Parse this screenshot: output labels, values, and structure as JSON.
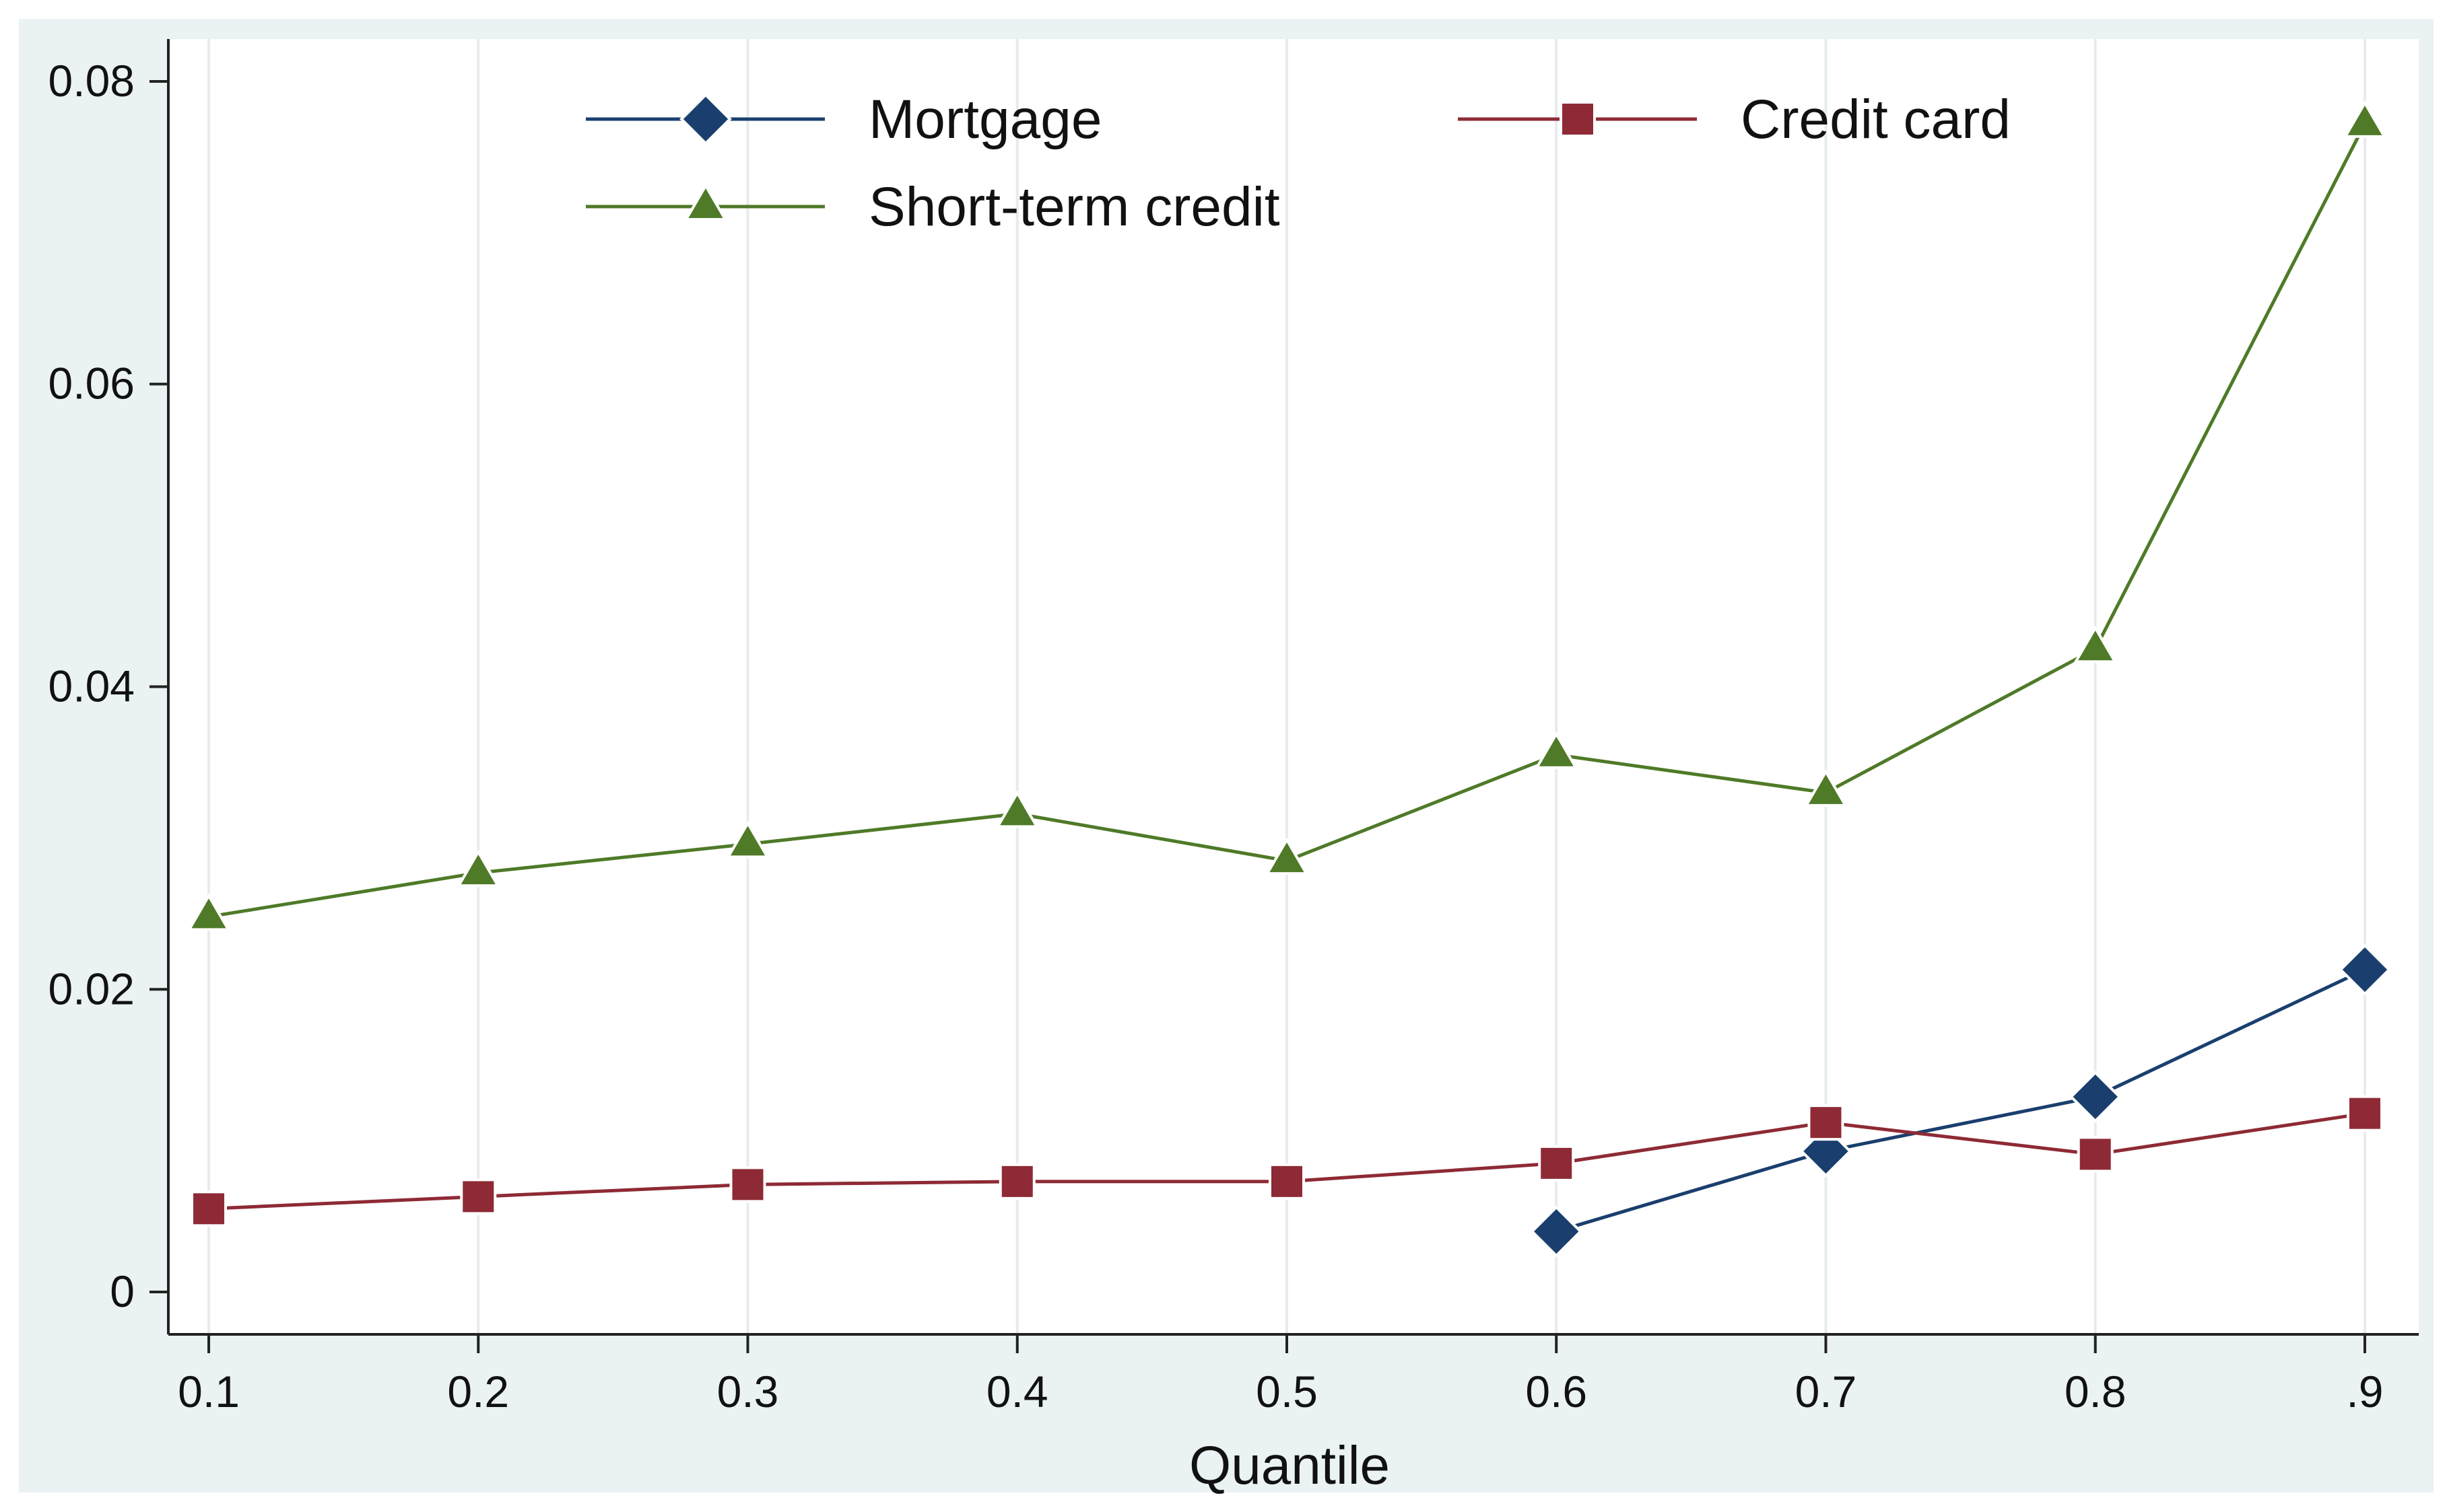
{
  "chart_data": {
    "type": "line",
    "title": "",
    "xlabel": "Quantile",
    "ylabel": "",
    "x": [
      0.1,
      0.2,
      0.3,
      0.4,
      0.5,
      0.6,
      0.7,
      0.8,
      0.9
    ],
    "xtick_labels": [
      "0.1",
      "0.2",
      "0.3",
      "0.4",
      "0.5",
      "0.6",
      "0.7",
      "0.8",
      ".9"
    ],
    "yticks": [
      0,
      0.02,
      0.04,
      0.06,
      0.08
    ],
    "ytick_labels": [
      "0",
      "0.02",
      "0.04",
      "0.06",
      "0.08"
    ],
    "xlim": [
      0.085,
      0.92
    ],
    "ylim": [
      -0.0028,
      0.0828
    ],
    "grid": "vertical",
    "legend_position": "top",
    "series": [
      {
        "name": "Mortgage",
        "color": "#1a3f6e",
        "marker": "diamond",
        "values": [
          null,
          null,
          null,
          null,
          null,
          0.004,
          0.0093,
          0.0129,
          0.0213
        ]
      },
      {
        "name": "Credit card",
        "color": "#8e2a35",
        "marker": "square",
        "values": [
          0.0055,
          0.0063,
          0.0071,
          0.0073,
          0.0073,
          0.0085,
          0.0112,
          0.0091,
          0.0118
        ]
      },
      {
        "name": "Short-term credit",
        "color": "#4f7a28",
        "marker": "triangle",
        "values": [
          0.0248,
          0.0277,
          0.0296,
          0.0316,
          0.0285,
          0.0355,
          0.033,
          0.0425,
          0.0772
        ]
      }
    ]
  }
}
